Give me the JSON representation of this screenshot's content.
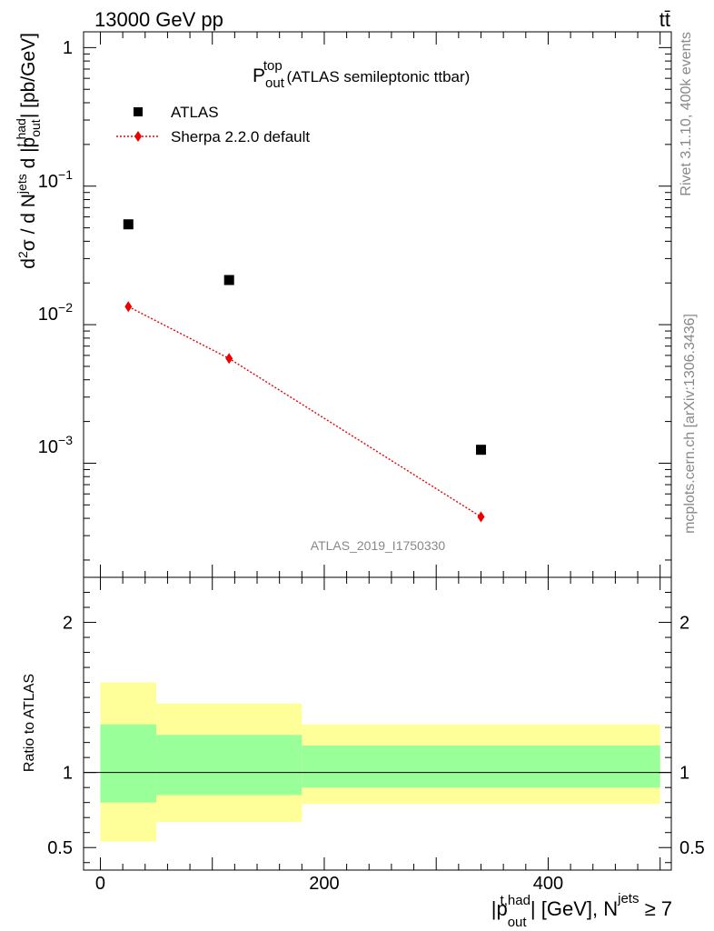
{
  "header": {
    "energy_label": "13000 GeV pp",
    "process_label": "tt̄"
  },
  "side_labels": {
    "rivet": "Rivet 3.1.10,  400k events",
    "mcplots": "mcplots.cern.ch [arXiv:1306.3436]"
  },
  "chart_data": [
    {
      "type": "scatter",
      "title": {
        "main": "P",
        "sup": "top",
        "sub": "out",
        "rest": " (ATLAS semileptonic ttbar)"
      },
      "watermark": "ATLAS_2019_I1750330",
      "ylabel": {
        "p1": "d",
        "p1_sup": "2",
        "p2": "σ / d N",
        "p2_sup": "jets",
        "p3": " d |p",
        "p3_sup": "t,had",
        "p3_sub": "out",
        "p4": "| [pb/GeV]"
      },
      "y_scale": "log",
      "ylim": [
        0.00015,
        1.3
      ],
      "xlim": [
        -15,
        510
      ],
      "y_ticks": [
        {
          "value": 1,
          "base": "1",
          "exp": ""
        },
        {
          "value": 0.1,
          "base": "10",
          "exp": "−1"
        },
        {
          "value": 0.01,
          "base": "10",
          "exp": "−2"
        },
        {
          "value": 0.001,
          "base": "10",
          "exp": "−3"
        }
      ],
      "legend_position": "top-left",
      "series": [
        {
          "name": "ATLAS",
          "marker": "square",
          "color": "#000000",
          "x": [
            25,
            115,
            340
          ],
          "y": [
            0.053,
            0.021,
            0.00125
          ]
        },
        {
          "name": "Sherpa 2.2.0 default",
          "marker": "diamond",
          "color": "#ee0000",
          "line": "dotted",
          "x": [
            25,
            115,
            340
          ],
          "y": [
            0.0135,
            0.0057,
            0.00041
          ]
        }
      ]
    },
    {
      "type": "area",
      "ylabel": "Ratio to ATLAS",
      "xlabel": {
        "p1": "|p",
        "p1_sup": "t,had",
        "p1_sub": "out",
        "p2": "| [GeV], N",
        "p2_sup": "jets",
        "p3": " ≥ 7"
      },
      "xlim": [
        -15,
        510
      ],
      "ylim": [
        0.35,
        2.3
      ],
      "y_ticks": [
        0.5,
        1,
        2
      ],
      "x_ticks": [
        0,
        200,
        400
      ],
      "reference_line": 1,
      "bins": [
        {
          "x": [
            0,
            50
          ],
          "band_inner": [
            0.8,
            1.32
          ],
          "band_outer": [
            0.54,
            1.6
          ]
        },
        {
          "x": [
            50,
            180
          ],
          "band_inner": [
            0.85,
            1.25
          ],
          "band_outer": [
            0.67,
            1.46
          ]
        },
        {
          "x": [
            180,
            500
          ],
          "band_inner": [
            0.9,
            1.18
          ],
          "band_outer": [
            0.79,
            1.32
          ]
        }
      ],
      "colors": {
        "inner": "#99ff99",
        "outer": "#ffff99"
      }
    }
  ]
}
